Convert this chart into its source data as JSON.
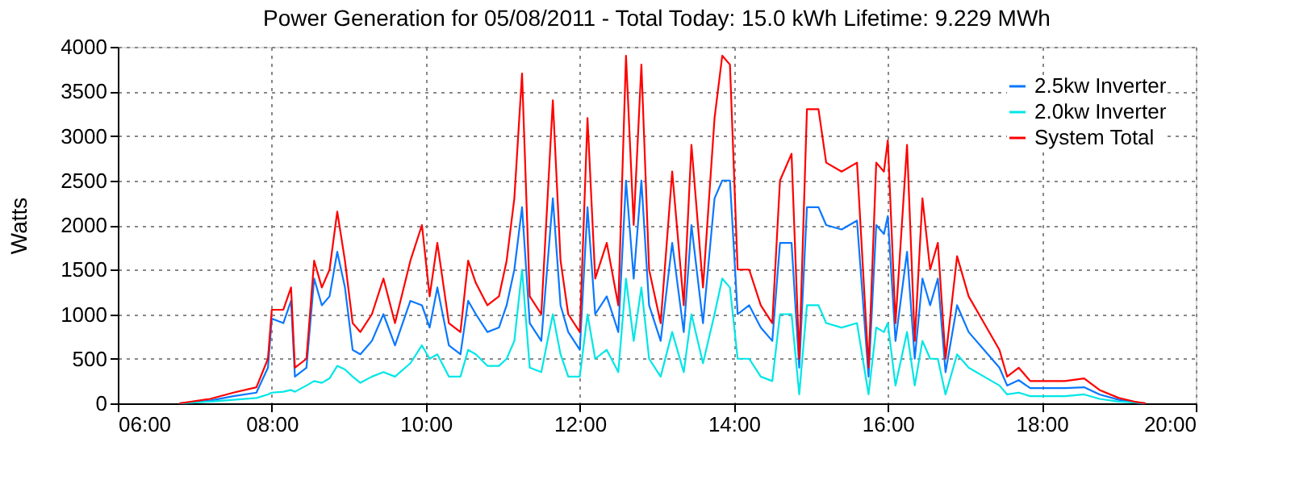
{
  "chart_data": {
    "type": "line",
    "title": "Power Generation for 05/08/2011 - Total Today: 15.0 kWh   Lifetime: 9.229 MWh",
    "ylabel": "Watts",
    "x": [
      6.8,
      7.2,
      7.5,
      7.8,
      7.95,
      8.0,
      8.15,
      8.25,
      8.3,
      8.45,
      8.55,
      8.65,
      8.75,
      8.85,
      8.95,
      9.05,
      9.15,
      9.3,
      9.45,
      9.6,
      9.8,
      9.95,
      10.05,
      10.15,
      10.3,
      10.45,
      10.55,
      10.65,
      10.8,
      10.95,
      11.05,
      11.15,
      11.25,
      11.35,
      11.5,
      11.65,
      11.75,
      11.85,
      12.0,
      12.1,
      12.2,
      12.35,
      12.5,
      12.6,
      12.7,
      12.8,
      12.9,
      13.05,
      13.2,
      13.35,
      13.45,
      13.6,
      13.75,
      13.85,
      13.95,
      14.05,
      14.2,
      14.35,
      14.5,
      14.6,
      14.75,
      14.85,
      14.95,
      15.1,
      15.2,
      15.4,
      15.6,
      15.75,
      15.85,
      15.95,
      16.0,
      16.1,
      16.25,
      16.35,
      16.45,
      16.55,
      16.65,
      16.75,
      16.9,
      17.05,
      17.25,
      17.45,
      17.55,
      17.7,
      17.85,
      18.0,
      18.3,
      18.55,
      18.75,
      19.0,
      19.2,
      19.35
    ],
    "series": [
      {
        "name": "2.5kw Inverter",
        "color": "#0a78ff",
        "values": [
          0,
          30,
          80,
          120,
          400,
          950,
          900,
          1150,
          300,
          400,
          1400,
          1100,
          1200,
          1700,
          1300,
          600,
          550,
          700,
          1000,
          650,
          1150,
          1100,
          850,
          1300,
          650,
          550,
          1150,
          1000,
          800,
          850,
          1100,
          1500,
          2200,
          900,
          700,
          2300,
          1100,
          800,
          600,
          2200,
          1000,
          1200,
          800,
          2500,
          1400,
          2500,
          1100,
          700,
          1800,
          800,
          2000,
          900,
          2300,
          2500,
          2500,
          1000,
          1100,
          850,
          700,
          1800,
          1800,
          400,
          2200,
          2200,
          2000,
          1950,
          2050,
          300,
          2000,
          1900,
          2100,
          700,
          1700,
          500,
          1400,
          1100,
          1400,
          350,
          1100,
          800,
          600,
          400,
          200,
          260,
          170,
          170,
          170,
          180,
          100,
          40,
          10,
          0
        ]
      },
      {
        "name": "2.0kw Inverter",
        "color": "#00e6e6",
        "values": [
          0,
          20,
          40,
          60,
          100,
          120,
          130,
          150,
          130,
          200,
          250,
          230,
          280,
          420,
          380,
          300,
          230,
          300,
          350,
          300,
          450,
          650,
          500,
          550,
          300,
          300,
          600,
          550,
          420,
          420,
          500,
          700,
          1500,
          400,
          350,
          1000,
          550,
          300,
          300,
          1000,
          500,
          600,
          350,
          1400,
          700,
          1300,
          500,
          300,
          800,
          350,
          1000,
          450,
          1000,
          1400,
          1300,
          500,
          500,
          300,
          250,
          1000,
          1000,
          100,
          1100,
          1100,
          900,
          850,
          900,
          100,
          850,
          800,
          900,
          200,
          800,
          200,
          700,
          500,
          500,
          100,
          550,
          400,
          300,
          200,
          100,
          120,
          80,
          80,
          80,
          100,
          50,
          20,
          10,
          0
        ]
      },
      {
        "name": "System Total",
        "color": "#ff0000",
        "values": [
          0,
          50,
          120,
          180,
          500,
          1050,
          1050,
          1300,
          400,
          500,
          1600,
          1300,
          1500,
          2150,
          1600,
          900,
          800,
          1000,
          1400,
          900,
          1600,
          2000,
          1200,
          1800,
          900,
          800,
          1600,
          1350,
          1100,
          1200,
          1600,
          2300,
          3700,
          1200,
          1000,
          3400,
          1600,
          1000,
          800,
          3200,
          1400,
          1800,
          1100,
          3900,
          2000,
          3800,
          1500,
          900,
          2600,
          1100,
          2900,
          1300,
          3200,
          3900,
          3800,
          1500,
          1500,
          1100,
          900,
          2500,
          2800,
          500,
          3300,
          3300,
          2700,
          2600,
          2700,
          400,
          2700,
          2600,
          2950,
          900,
          2900,
          700,
          2300,
          1500,
          1800,
          500,
          1650,
          1200,
          900,
          600,
          300,
          400,
          250,
          250,
          250,
          280,
          150,
          60,
          20,
          0
        ]
      }
    ],
    "xlim": [
      6,
      20
    ],
    "xticks": [
      {
        "value": 6,
        "label": "06:00"
      },
      {
        "value": 8,
        "label": "08:00"
      },
      {
        "value": 10,
        "label": "10:00"
      },
      {
        "value": 12,
        "label": "12:00"
      },
      {
        "value": 14,
        "label": "14:00"
      },
      {
        "value": 16,
        "label": "16:00"
      },
      {
        "value": 18,
        "label": "18:00"
      },
      {
        "value": 20,
        "label": "20:00"
      }
    ],
    "ylim": [
      0,
      4000
    ],
    "yticks": [
      0,
      500,
      1000,
      1500,
      2000,
      2500,
      3000,
      3500,
      4000
    ],
    "grid": true,
    "legend": "top right",
    "line_style": "solid",
    "marker": "none"
  }
}
